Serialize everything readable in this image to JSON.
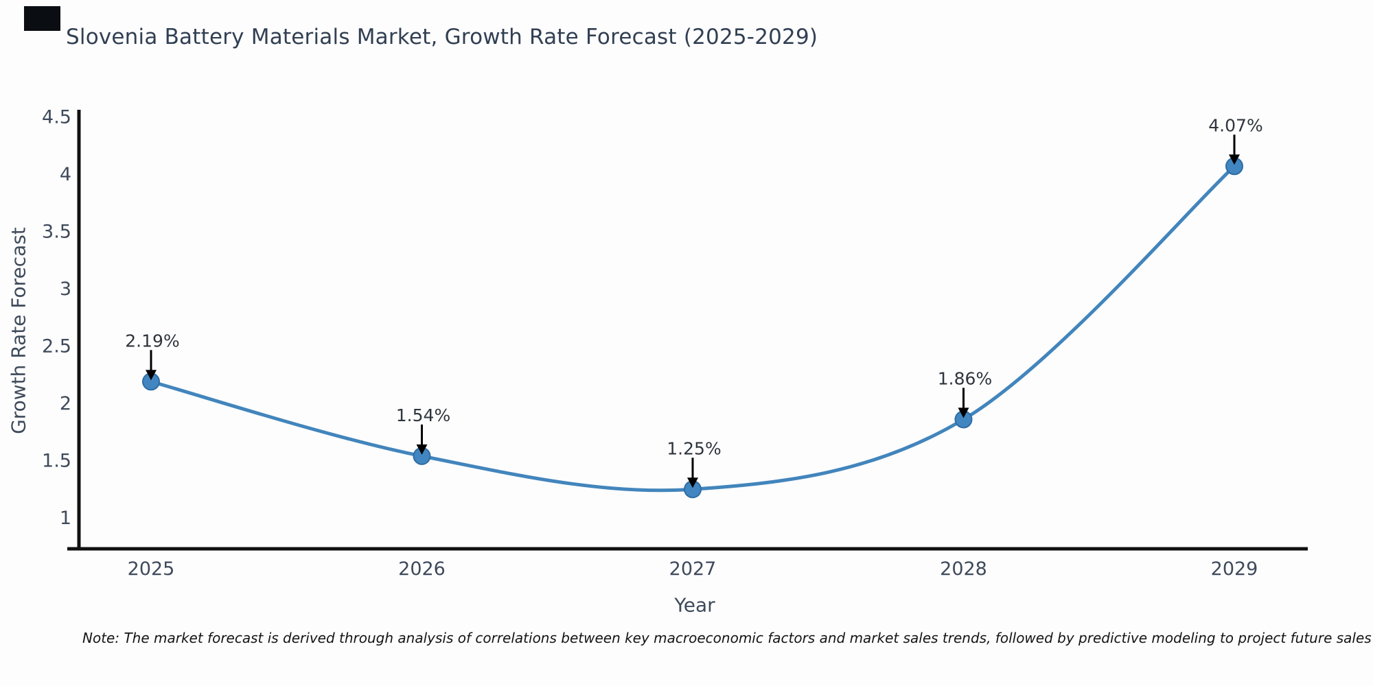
{
  "footnote": "Note: The market forecast is derived through analysis of correlations between key macroeconomic factors and market sales trends, followed by predictive modeling to project future sales",
  "chart_data": {
    "type": "line",
    "title": "Slovenia Battery Materials Market, Growth Rate Forecast (2025-2029)",
    "xlabel": "Year",
    "ylabel": "Growth Rate Forecast",
    "categories": [
      "2025",
      "2026",
      "2027",
      "2028",
      "2029"
    ],
    "values": [
      2.19,
      1.54,
      1.25,
      1.86,
      4.07
    ],
    "point_labels": [
      "2.19%",
      "1.54%",
      "1.25%",
      "1.86%",
      "4.07%"
    ],
    "series": [
      {
        "name": "Growth Rate Forecast",
        "values": [
          2.19,
          1.54,
          1.25,
          1.86,
          4.07
        ]
      }
    ],
    "yticks": [
      4.5,
      4,
      3.5,
      3,
      2.5,
      2,
      1.5,
      1
    ],
    "ylim": [
      0.73,
      4.58
    ],
    "grid": false,
    "legend": "none",
    "line_shape": "spline",
    "annotation_arrows": "down-arrow-to-point",
    "colors": {
      "line": "#4285bc",
      "marker_fill": "#4186c0",
      "marker_edge": "#2f6da3",
      "axis": "#111111",
      "tick_text": "#3e4a5a",
      "title_text": "#313f52",
      "annotation_text": "#2f353c",
      "arrow": "#000000",
      "note_text": "#141414",
      "logo_block": "#0a0d12"
    }
  }
}
